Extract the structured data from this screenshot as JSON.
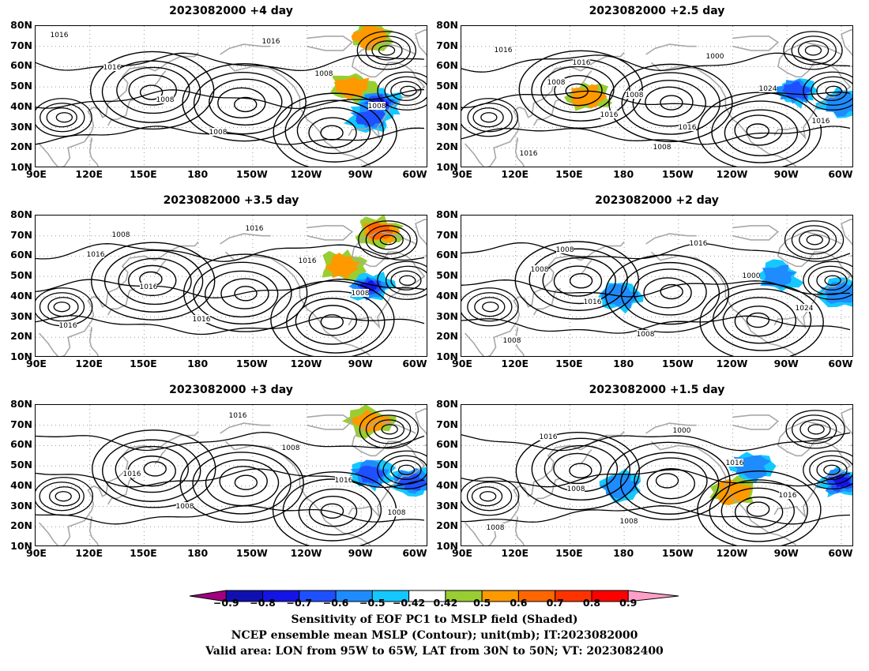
{
  "panels": [
    {
      "title": "2023082000  +4 day",
      "col": 0,
      "row": 0,
      "contour_labels": [
        "1016",
        "1016",
        "1008",
        "1008",
        "1016",
        "1008",
        "1008"
      ],
      "shading": [
        {
          "lon": -80,
          "lat": 42,
          "v": -0.9
        },
        {
          "lon": -85,
          "lat": 35,
          "v": -0.7
        },
        {
          "lon": -95,
          "lat": 50,
          "v": 0.6
        },
        {
          "lon": -85,
          "lat": 75,
          "v": 0.6
        }
      ]
    },
    {
      "title": "2023082000  +2.5 day",
      "col": 1,
      "row": 0,
      "contour_labels": [
        "1016",
        "1008",
        "1016",
        "1008",
        "1000",
        "1024",
        "1016",
        "1016",
        "1016",
        "1008",
        "1016"
      ],
      "shading": [
        {
          "lon": -85,
          "lat": 48,
          "v": -0.7
        },
        {
          "lon": -60,
          "lat": 42,
          "v": -0.6
        },
        {
          "lon": 160,
          "lat": 45,
          "v": 0.6
        }
      ]
    },
    {
      "title": "2023082000  +3.5 day",
      "col": 0,
      "row": 1,
      "contour_labels": [
        "1016",
        "1016",
        "1016",
        "1016",
        "1016",
        "1008",
        "1016",
        "1008"
      ],
      "shading": [
        {
          "lon": -85,
          "lat": 45,
          "v": -0.8
        },
        {
          "lon": -80,
          "lat": 72,
          "v": 0.7
        },
        {
          "lon": -100,
          "lat": 55,
          "v": 0.6
        }
      ]
    },
    {
      "title": "2023082000  +2 day",
      "col": 1,
      "row": 1,
      "contour_labels": [
        "1008",
        "1016",
        "1008",
        "1016",
        "1000",
        "1024",
        "1008",
        "1008"
      ],
      "shading": [
        {
          "lon": -95,
          "lat": 50,
          "v": -0.6
        },
        {
          "lon": -60,
          "lat": 42,
          "v": -0.6
        },
        {
          "lon": 178,
          "lat": 40,
          "v": -0.6
        }
      ]
    },
    {
      "title": "2023082000  +3 day",
      "col": 0,
      "row": 2,
      "contour_labels": [
        "1016",
        "1008",
        "1016",
        "1008",
        "1016",
        "1008"
      ],
      "shading": [
        {
          "lon": -85,
          "lat": 46,
          "v": -0.7
        },
        {
          "lon": -62,
          "lat": 42,
          "v": -0.7
        },
        {
          "lon": -85,
          "lat": 72,
          "v": 0.6
        }
      ]
    },
    {
      "title": "2023082000  +1.5 day",
      "col": 1,
      "row": 2,
      "contour_labels": [
        "1008",
        "1008",
        "1000",
        "1016",
        "1016",
        "1008",
        "1016"
      ],
      "shading": [
        {
          "lon": -60,
          "lat": 42,
          "v": -0.8
        },
        {
          "lon": -110,
          "lat": 50,
          "v": -0.6
        },
        {
          "lon": 178,
          "lat": 40,
          "v": -0.6
        },
        {
          "lon": -120,
          "lat": 37,
          "v": 0.6
        }
      ]
    }
  ],
  "axes": {
    "lat_labels": [
      "80N",
      "70N",
      "60N",
      "50N",
      "40N",
      "30N",
      "20N",
      "10N"
    ],
    "lon_labels": [
      "90E",
      "120E",
      "150E",
      "180",
      "150W",
      "120W",
      "90W",
      "60W"
    ]
  },
  "colorbar": {
    "ticks": [
      "−0.9",
      "−0.8",
      "−0.7",
      "−0.6",
      "−0.5",
      "−0.42",
      "0.42",
      "0.5",
      "0.6",
      "0.7",
      "0.8",
      "0.9"
    ],
    "colors": [
      "#a0007f",
      "#1010b0",
      "#1414e6",
      "#1e50ff",
      "#1e8cff",
      "#14c8ff",
      "#ffffff",
      "#9acd32",
      "#ff9900",
      "#ff6600",
      "#ff3300",
      "#ff0000",
      "#ff9fc8"
    ]
  },
  "captions": [
    "Sensitivity of EOF PC1 to MSLP field (Shaded)",
    "NCEP ensemble mean MSLP (Contour); unit(mb); IT:2023082000",
    "Valid area: LON from 95W to 65W, LAT from 30N to 50N; VT: 2023082400"
  ]
}
